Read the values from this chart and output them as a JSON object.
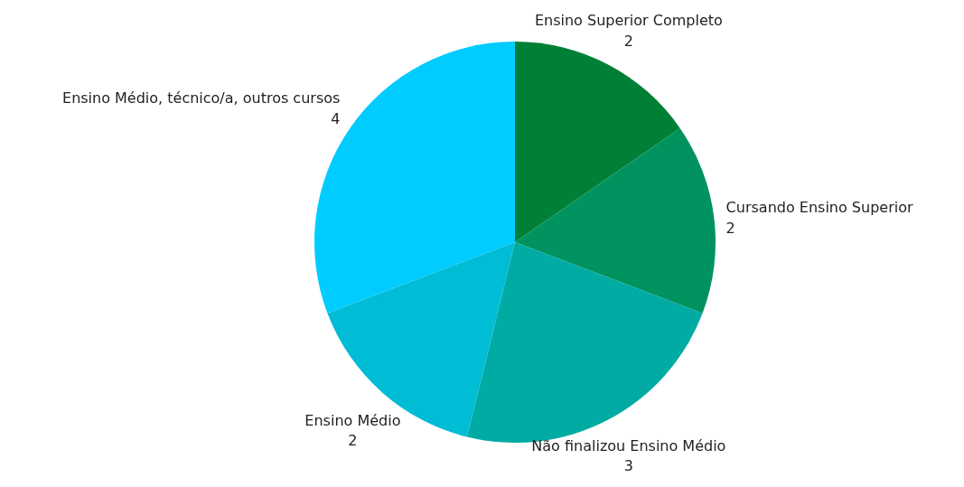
{
  "chart_data": {
    "type": "pie",
    "categories": [
      "Ensino Superior Completo",
      "Cursando Ensino Superior",
      "Não finalizou Ensino Médio",
      "Ensino Médio",
      "Ensino Médio, técnico/a, outros cursos"
    ],
    "values": [
      2,
      2,
      3,
      2,
      4
    ],
    "colors": [
      "#008037",
      "#00935f",
      "#00aba4",
      "#00bcd4",
      "#00ccff"
    ],
    "data_labels": true,
    "legend": false
  }
}
